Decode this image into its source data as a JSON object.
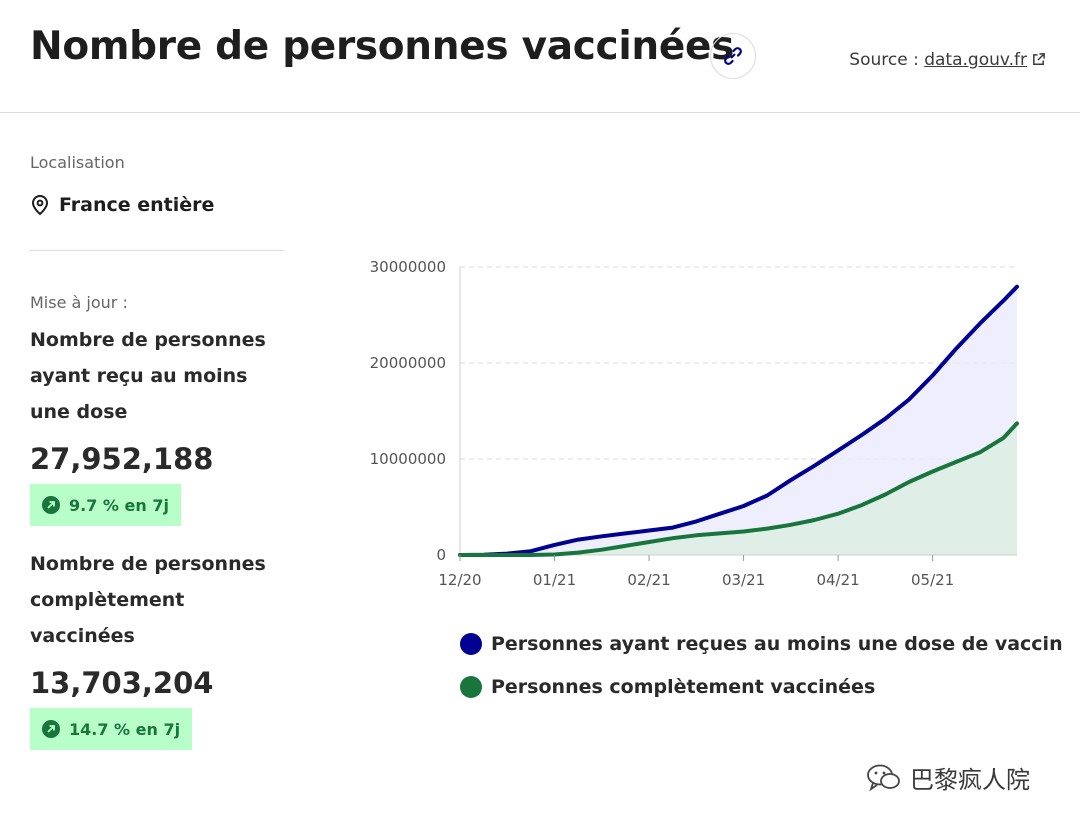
{
  "header": {
    "title": "Nombre de personnes vaccinées",
    "source_prefix": "Source :",
    "source_link": "data.gouv.fr"
  },
  "sidebar": {
    "location_label": "Localisation",
    "location_value": "France entière",
    "update_label": "Mise à jour :",
    "metrics": [
      {
        "label": "Nombre de personnes ayant reçu au moins une dose",
        "value": "27,952,188",
        "trend": "9.7 % en 7j"
      },
      {
        "label": "Nombre de personnes complètement vaccinées",
        "value": "13,703,204",
        "trend": "14.7 % en 7j"
      }
    ]
  },
  "colors": {
    "dose1": "#000091",
    "complete": "#18753c",
    "badge_bg": "#b8fec9"
  },
  "chart_data": {
    "type": "area",
    "title": "",
    "xlabel": "",
    "ylabel": "",
    "ylim": [
      0,
      30000000
    ],
    "xlim": [
      0,
      165
    ],
    "x_unit": "days since 2020-12-27",
    "yticks": [
      "0",
      "10000000",
      "20000000",
      "30000000"
    ],
    "xticks": [
      {
        "label": "12/20",
        "x": 0
      },
      {
        "label": "01/21",
        "x": 28
      },
      {
        "label": "02/21",
        "x": 56
      },
      {
        "label": "03/21",
        "x": 84
      },
      {
        "label": "04/21",
        "x": 112
      },
      {
        "label": "05/21",
        "x": 140
      }
    ],
    "grid": true,
    "legend_position": "bottom",
    "series": [
      {
        "name": "Personnes ayant reçues au moins une dose de vaccin",
        "color": "#000091",
        "fill": "#ecebfc",
        "points": [
          [
            0,
            0
          ],
          [
            7,
            30000
          ],
          [
            14,
            150000
          ],
          [
            21,
            400000
          ],
          [
            28,
            1050000
          ],
          [
            35,
            1600000
          ],
          [
            42,
            1950000
          ],
          [
            49,
            2250000
          ],
          [
            56,
            2550000
          ],
          [
            63,
            2850000
          ],
          [
            70,
            3500000
          ],
          [
            77,
            4300000
          ],
          [
            84,
            5100000
          ],
          [
            91,
            6200000
          ],
          [
            98,
            7800000
          ],
          [
            105,
            9300000
          ],
          [
            112,
            10900000
          ],
          [
            119,
            12500000
          ],
          [
            126,
            14200000
          ],
          [
            133,
            16200000
          ],
          [
            140,
            18700000
          ],
          [
            147,
            21500000
          ],
          [
            154,
            24100000
          ],
          [
            161,
            26500000
          ],
          [
            165,
            27952188
          ]
        ]
      },
      {
        "name": "Personnes complètement vaccinées",
        "color": "#18753c",
        "fill": "#dcefe3",
        "points": [
          [
            0,
            0
          ],
          [
            14,
            0
          ],
          [
            21,
            5000
          ],
          [
            28,
            50000
          ],
          [
            35,
            250000
          ],
          [
            42,
            550000
          ],
          [
            49,
            950000
          ],
          [
            56,
            1350000
          ],
          [
            63,
            1750000
          ],
          [
            70,
            2050000
          ],
          [
            77,
            2250000
          ],
          [
            84,
            2450000
          ],
          [
            91,
            2750000
          ],
          [
            98,
            3150000
          ],
          [
            105,
            3650000
          ],
          [
            112,
            4300000
          ],
          [
            119,
            5200000
          ],
          [
            126,
            6300000
          ],
          [
            133,
            7600000
          ],
          [
            140,
            8700000
          ],
          [
            147,
            9700000
          ],
          [
            154,
            10700000
          ],
          [
            161,
            12200000
          ],
          [
            165,
            13703204
          ]
        ]
      }
    ]
  },
  "watermark": {
    "text": "巴黎疯人院"
  }
}
